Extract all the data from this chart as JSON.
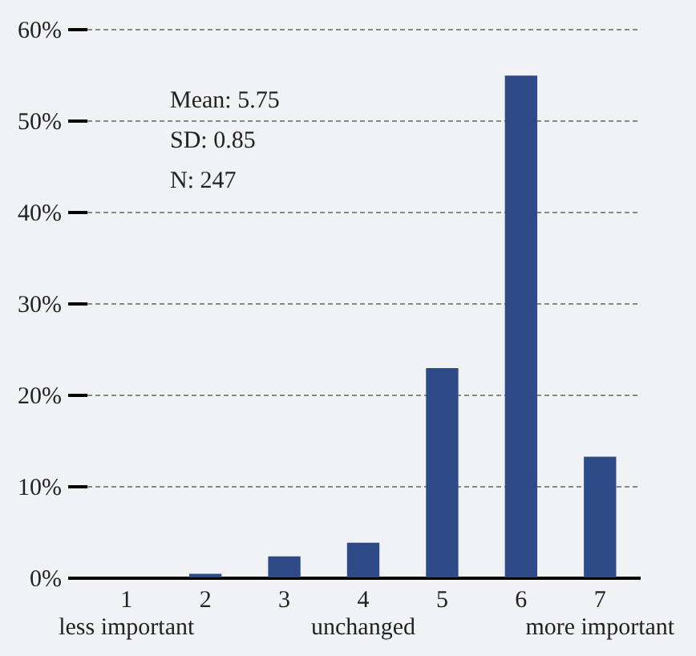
{
  "chart_data": {
    "type": "bar",
    "categories": [
      "1\nless important",
      "2",
      "3",
      "4\nunchanged",
      "5",
      "6",
      "7\nmore important"
    ],
    "values": [
      0,
      0.4,
      2.3,
      3.8,
      22.9,
      54.9,
      13.2
    ],
    "color": "#2f4b87",
    "ylim": [
      0,
      60
    ],
    "yticks": [
      {
        "value": 0,
        "label": "0%"
      },
      {
        "value": 10,
        "label": "10%"
      },
      {
        "value": 20,
        "label": "20%"
      },
      {
        "value": 30,
        "label": "30%"
      },
      {
        "value": 40,
        "label": "40%"
      },
      {
        "value": 50,
        "label": "50%"
      },
      {
        "value": 60,
        "label": "60%"
      }
    ],
    "grid": "y",
    "annotations": [
      "Mean: 5.75",
      "SD: 0.85",
      "N: 247"
    ]
  }
}
